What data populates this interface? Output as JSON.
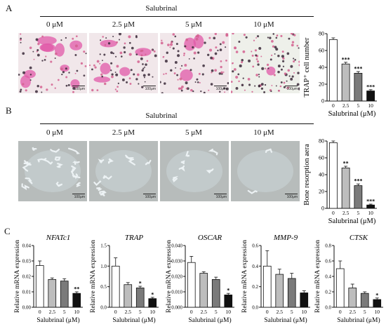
{
  "panels": {
    "A": {
      "label": "A",
      "treatment": "Salubrinal",
      "concentrations": [
        "0 μM",
        "2.5 μM",
        "5 μM",
        "10 μM"
      ],
      "scale_bar": "100μm",
      "image_style": "TRAP-stained osteoclast micrographs (pink cells, dark nuclei)"
    },
    "B": {
      "label": "B",
      "treatment": "Salubrinal",
      "concentrations": [
        "0 μM",
        "2.5 μM",
        "5 μM",
        "10 μM"
      ],
      "scale_bar": "100μm",
      "image_style": "Bone resorption pit micrographs (grey background, white pits)"
    },
    "C": {
      "label": "C"
    }
  },
  "chart_data": [
    {
      "id": "A-chart",
      "type": "bar",
      "categories": [
        "0",
        "2.5",
        "5",
        "10"
      ],
      "values": [
        73,
        44,
        33,
        12
      ],
      "errors": [
        2,
        2,
        2,
        1.5
      ],
      "significance": [
        "",
        "***",
        "***",
        "***"
      ],
      "title": "",
      "ylabel": "TRAP⁺ cell number",
      "xlabel": "Salubrinal (μM)",
      "ylim": [
        0,
        80
      ],
      "yticks": [
        0,
        20,
        40,
        60,
        80
      ],
      "ytick_labels": [
        "0",
        "20",
        "40",
        "60",
        "80"
      ]
    },
    {
      "id": "B-chart",
      "type": "bar",
      "categories": [
        "0",
        "2.5",
        "5",
        "10"
      ],
      "values": [
        78,
        48,
        27,
        4
      ],
      "errors": [
        2,
        2,
        2,
        1
      ],
      "significance": [
        "",
        "**",
        "***",
        "***"
      ],
      "title": "",
      "ylabel": "Bone resorption aera",
      "xlabel": "Salubrinal (μM)",
      "ylim": [
        0,
        80
      ],
      "yticks": [
        0,
        20,
        40,
        60,
        80
      ],
      "ytick_labels": [
        "0",
        "20",
        "40",
        "60",
        "80"
      ]
    },
    {
      "id": "C-NFATc1",
      "type": "bar",
      "categories": [
        "0",
        "2.5",
        "5",
        "10"
      ],
      "values": [
        0.027,
        0.018,
        0.017,
        0.009
      ],
      "errors": [
        0.003,
        0.001,
        0.0015,
        0.001
      ],
      "significance": [
        "",
        "",
        "",
        "**"
      ],
      "title": "NFATc1",
      "ylabel": "Relative mRNA expression",
      "xlabel": "Salubrinal (μM)",
      "ylim": [
        0,
        0.04
      ],
      "yticks": [
        0,
        0.01,
        0.02,
        0.03,
        0.04
      ],
      "ytick_labels": [
        "0.00",
        "0.01",
        "0.02",
        "0.03",
        "0.04"
      ]
    },
    {
      "id": "C-TRAP",
      "type": "bar",
      "categories": [
        "0",
        "2.5",
        "5",
        "10"
      ],
      "values": [
        1.0,
        0.55,
        0.47,
        0.21
      ],
      "errors": [
        0.2,
        0.05,
        0.04,
        0.03
      ],
      "significance": [
        "",
        "",
        "*",
        "*"
      ],
      "title": "TRAP",
      "ylabel": "Relative mRNA expression",
      "xlabel": "Salubrinal (μM)",
      "ylim": [
        0,
        1.5
      ],
      "yticks": [
        0,
        0.5,
        1.0,
        1.5
      ],
      "ytick_labels": [
        "0.0",
        "0.5",
        "1.0",
        "1.5"
      ]
    },
    {
      "id": "C-OSCAR",
      "type": "bar",
      "categories": [
        "0",
        "2.5",
        "5",
        "10"
      ],
      "values": [
        0.029,
        0.022,
        0.018,
        0.008
      ],
      "errors": [
        0.004,
        0.001,
        0.0015,
        0.001
      ],
      "significance": [
        "",
        "",
        "",
        "*"
      ],
      "title": "OSCAR",
      "ylabel": "Relative mRNA expression",
      "xlabel": "Salubrinal (μM)",
      "ylim": [
        0,
        0.04
      ],
      "yticks": [
        0,
        0.01,
        0.02,
        0.03,
        0.04
      ],
      "ytick_labels": [
        "0.000",
        "0.010",
        "0.020",
        "0.030",
        "0.040"
      ]
    },
    {
      "id": "C-MMP9",
      "type": "bar",
      "categories": [
        "0",
        "2.5",
        "5",
        "10"
      ],
      "values": [
        0.4,
        0.32,
        0.28,
        0.14
      ],
      "errors": [
        0.15,
        0.05,
        0.05,
        0.02
      ],
      "significance": [
        "",
        "",
        "",
        ""
      ],
      "title": "MMP-9",
      "ylabel": "Relative mRNA expression",
      "xlabel": "Salubrinal (μM)",
      "ylim": [
        0,
        0.6
      ],
      "yticks": [
        0,
        0.2,
        0.4,
        0.6
      ],
      "ytick_labels": [
        "0.0",
        "0.2",
        "0.4",
        "0.6"
      ]
    },
    {
      "id": "C-CTSK",
      "type": "bar",
      "categories": [
        "0",
        "2.5",
        "5",
        "10"
      ],
      "values": [
        0.5,
        0.25,
        0.18,
        0.1
      ],
      "errors": [
        0.1,
        0.05,
        0.02,
        0.02
      ],
      "significance": [
        "",
        "",
        "",
        "*"
      ],
      "title": "CTSK",
      "ylabel": "Relative mRNA expression",
      "xlabel": "Salubrinal (μM)",
      "ylim": [
        0,
        0.8
      ],
      "yticks": [
        0,
        0.2,
        0.4,
        0.6,
        0.8
      ],
      "ytick_labels": [
        "0.0",
        "0.2",
        "0.4",
        "0.6",
        "0.8"
      ]
    }
  ],
  "colors": {
    "bar_fills": [
      "#ffffff",
      "#bdbdbd",
      "#7a7a7a",
      "#111111"
    ],
    "trap_background": "#f1e7ea",
    "trap_cell": "#e05aa8",
    "nucleus": "#3b2a3a",
    "pit_background": "#b7bcbb",
    "pit_mark": "#eef3f5"
  }
}
